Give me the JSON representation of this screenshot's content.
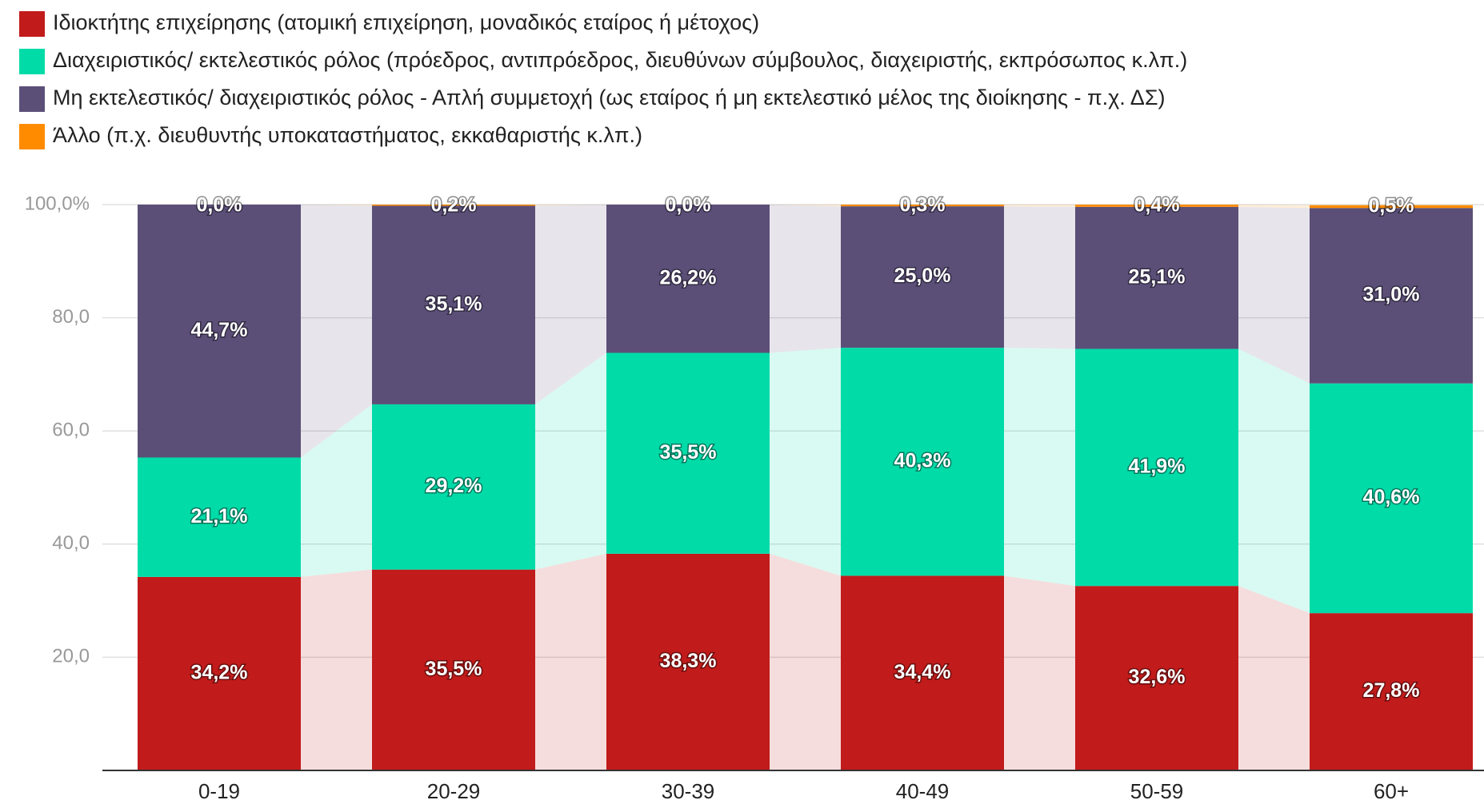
{
  "chart_data": {
    "type": "stacked-bar",
    "categories": [
      "0-19",
      "20-29",
      "30-39",
      "40-49",
      "50-59",
      "60+"
    ],
    "series": [
      {
        "name": "Ιδιοκτήτης επιχείρησης (ατομική επιχείρηση, μοναδικός εταίρος ή μέτοχος)",
        "color": "#c11b1b",
        "values": [
          34.2,
          35.5,
          38.3,
          34.4,
          32.6,
          27.8
        ],
        "value_labels": [
          "34,2%",
          "35,5%",
          "38,3%",
          "34,4%",
          "32,6%",
          "27,8%"
        ]
      },
      {
        "name": "Διαχειριστικός/ εκτελεστικός ρόλος (πρόεδρος, αντιπρόεδρος, διευθύνων σύμβουλος, διαχειριστής, εκπρόσωπος κ.λπ.)",
        "color": "#00dba8",
        "values": [
          21.1,
          29.2,
          35.5,
          40.3,
          41.9,
          40.6
        ],
        "value_labels": [
          "21,1%",
          "29,2%",
          "35,5%",
          "40,3%",
          "41,9%",
          "40,6%"
        ]
      },
      {
        "name": "Μη εκτελεστικός/ διαχειριστικός ρόλος - Απλή συμμετοχή (ως εταίρος ή μη εκτελεστικό μέλος της διοίκησης - π.χ. ΔΣ)",
        "color": "#5b4f78",
        "values": [
          44.7,
          35.1,
          26.2,
          25.0,
          25.1,
          31.0
        ],
        "value_labels": [
          "44,7%",
          "35,1%",
          "26,2%",
          "25,0%",
          "25,1%",
          "31,0%"
        ]
      },
      {
        "name": "Άλλο (π.χ. διευθυντής υποκαταστήματος, εκκαθαριστής κ.λπ.)",
        "color": "#ff8c00",
        "values": [
          0.0,
          0.2,
          0.0,
          0.3,
          0.4,
          0.5
        ],
        "value_labels": [
          "0,0%",
          "0,2%",
          "0,0%",
          "0,3%",
          "0,4%",
          "0,5%"
        ]
      }
    ],
    "ylim": [
      0,
      100
    ],
    "yticks": [
      {
        "value": 20,
        "label": "20,0"
      },
      {
        "value": 40,
        "label": "40,0"
      },
      {
        "value": 60,
        "label": "60,0"
      },
      {
        "value": 80,
        "label": "80,0"
      },
      {
        "value": 100,
        "label": "100,0%"
      }
    ],
    "grid": true,
    "legend": "top-left"
  }
}
